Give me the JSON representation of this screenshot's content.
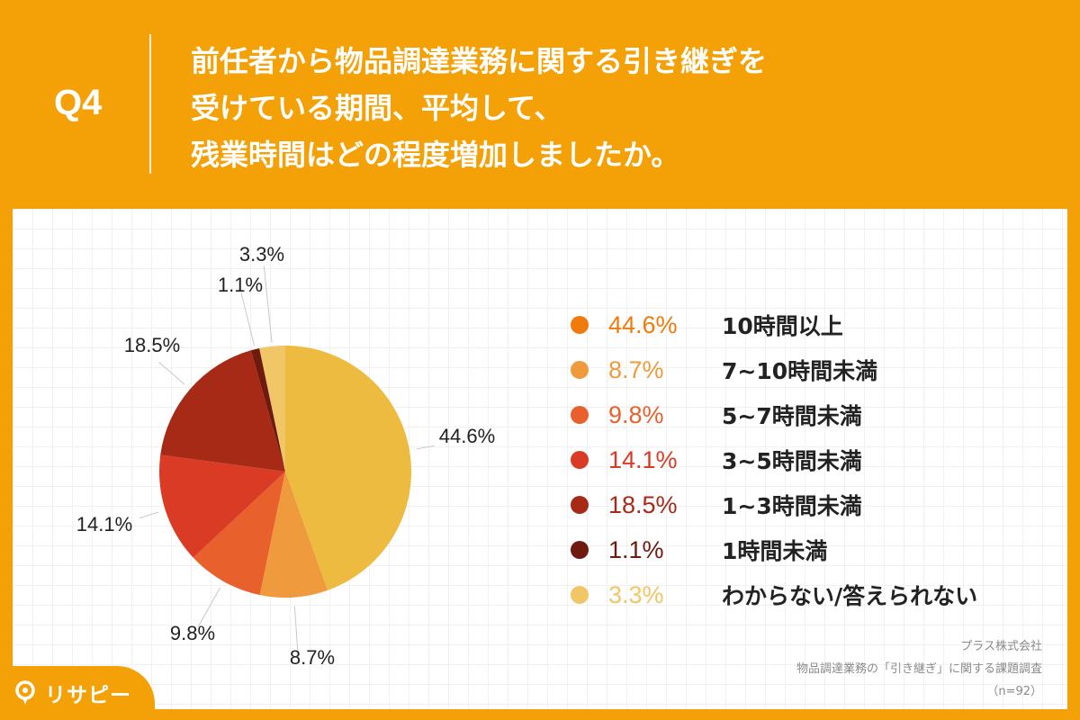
{
  "header": {
    "q_number": "Q4",
    "question_lines": [
      "前任者から物品調達業務に関する引き継ぎを",
      "受けている期間、平均して、",
      "残業時間はどの程度増加しましたか。"
    ]
  },
  "chart_data": {
    "type": "pie",
    "start": "12 o'clock, clockwise",
    "slices": [
      {
        "label": "10時間以上",
        "value": 44.6,
        "pct_label": "44.6%",
        "color": "#ecbb3f",
        "legend_color": "#f07a0a"
      },
      {
        "label": "7~10時間未満",
        "value": 8.7,
        "pct_label": "8.7%",
        "color": "#ef9a3d",
        "legend_color": "#ef9a3d"
      },
      {
        "label": "5~7時間未満",
        "value": 9.8,
        "pct_label": "9.8%",
        "color": "#e8602b",
        "legend_color": "#e8602b"
      },
      {
        "label": "3~5時間未満",
        "value": 14.1,
        "pct_label": "14.1%",
        "color": "#d93b24",
        "legend_color": "#d93b24"
      },
      {
        "label": "1~3時間未満",
        "value": 18.5,
        "pct_label": "18.5%",
        "color": "#a72a17",
        "legend_color": "#a72a17"
      },
      {
        "label": "1時間未満",
        "value": 1.1,
        "pct_label": "1.1%",
        "color": "#6e1a0e",
        "legend_color": "#6e1a0e"
      },
      {
        "label": "わからない/答えられない",
        "value": 3.3,
        "pct_label": "3.3%",
        "color": "#f0c667",
        "legend_color": "#f0c667"
      }
    ]
  },
  "source": {
    "company": "プラス株式会社",
    "survey": "物品調達業務の「引き継ぎ」に関する課題調査",
    "sample": "（n=92）"
  },
  "logo": {
    "text": "リサピー"
  }
}
